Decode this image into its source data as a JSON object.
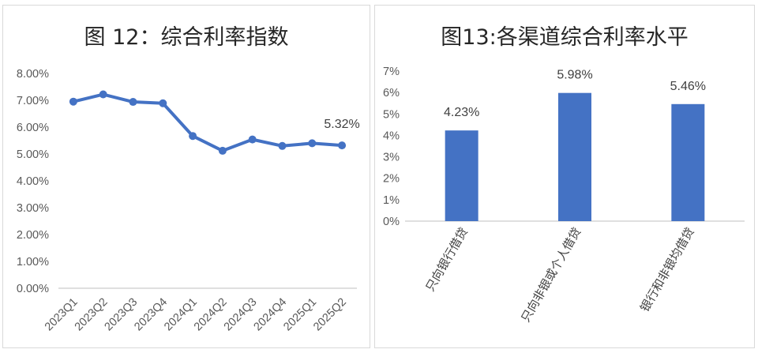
{
  "charts": [
    {
      "type": "line",
      "title": "图 12：综合利率指数",
      "categories": [
        "2023Q1",
        "2023Q2",
        "2023Q3",
        "2023Q4",
        "2024Q1",
        "2024Q2",
        "2024Q3",
        "2024Q4",
        "2025Q1",
        "2025Q2"
      ],
      "values": [
        6.95,
        7.22,
        6.94,
        6.89,
        5.67,
        5.12,
        5.54,
        5.3,
        5.4,
        5.32
      ],
      "ylim": [
        0,
        8
      ],
      "yticks": [
        "0.00%",
        "1.00%",
        "2.00%",
        "3.00%",
        "4.00%",
        "5.00%",
        "6.00%",
        "7.00%",
        "8.00%"
      ],
      "data_label": "5.32%",
      "color": "#4472c4",
      "grid": false
    },
    {
      "type": "bar",
      "title": "图13:各渠道综合利率水平",
      "categories": [
        "只向银行借贷",
        "只向非银或个人借贷",
        "银行和非银均借贷"
      ],
      "values": [
        4.23,
        5.98,
        5.46
      ],
      "data_labels": [
        "4.23%",
        "5.98%",
        "5.46%"
      ],
      "ylim": [
        0,
        7
      ],
      "yticks": [
        "0%",
        "1%",
        "2%",
        "3%",
        "4%",
        "5%",
        "6%",
        "7%"
      ],
      "color": "#4472c4",
      "grid": false
    }
  ],
  "chart_data": [
    {
      "type": "line",
      "title": "图 12：综合利率指数",
      "x": [
        "2023Q1",
        "2023Q2",
        "2023Q3",
        "2023Q4",
        "2024Q1",
        "2024Q2",
        "2024Q3",
        "2024Q4",
        "2025Q1",
        "2025Q2"
      ],
      "y": [
        6.95,
        7.22,
        6.94,
        6.89,
        5.67,
        5.12,
        5.54,
        5.3,
        5.4,
        5.32
      ],
      "ylim": [
        0,
        8
      ]
    },
    {
      "type": "bar",
      "title": "图13:各渠道综合利率水平",
      "categories": [
        "只向银行借贷",
        "只向非银或个人借贷",
        "银行和非银均借贷"
      ],
      "values": [
        4.23,
        5.98,
        5.46
      ],
      "ylim": [
        0,
        7
      ]
    }
  ]
}
